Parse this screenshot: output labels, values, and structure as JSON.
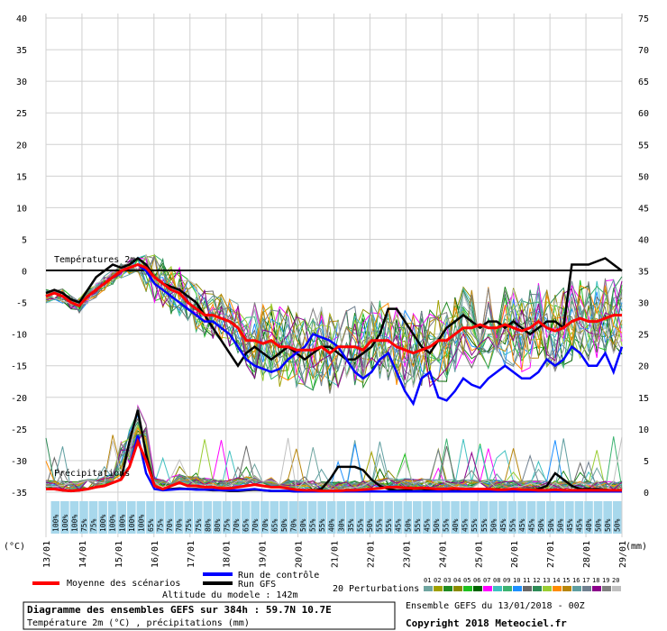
{
  "chart_data": {
    "type": "line",
    "left_axis_label": "(°C)",
    "right_axis_label": "(mm)",
    "temp_ylim": [
      -35,
      40
    ],
    "precip_ylim": [
      0,
      75
    ],
    "left_ticks": [
      40,
      35,
      30,
      25,
      20,
      15,
      10,
      5,
      0,
      -5,
      -10,
      -15,
      -20,
      -25,
      -30,
      -35
    ],
    "right_ticks": [
      75,
      70,
      65,
      60,
      55,
      50,
      45,
      40,
      35,
      30,
      25,
      20,
      15,
      10,
      5,
      0
    ],
    "x_labels": [
      "13/01",
      "14/01",
      "15/01",
      "16/01",
      "17/01",
      "18/01",
      "19/01",
      "20/01",
      "21/01",
      "22/01",
      "23/01",
      "24/01",
      "25/01",
      "26/01",
      "27/01",
      "28/01",
      "29/01"
    ],
    "temp_section_label": "Températures 2m",
    "precip_section_label": "Précipitations",
    "probabilities": [
      "100%",
      "100%",
      "100%",
      "75%",
      "75%",
      "100%",
      "100%",
      "100%",
      "100%",
      "100%",
      "65%",
      "75%",
      "70%",
      "70%",
      "75%",
      "75%",
      "80%",
      "80%",
      "75%",
      "70%",
      "65%",
      "70%",
      "70%",
      "65%",
      "50%",
      "70%",
      "50%",
      "55%",
      "55%",
      "40%",
      "30%",
      "35%",
      "55%",
      "50%",
      "55%",
      "55%",
      "45%",
      "50%",
      "55%",
      "45%",
      "50%",
      "55%",
      "40%",
      "45%",
      "55%",
      "55%",
      "50%",
      "45%",
      "55%",
      "45%",
      "45%",
      "50%",
      "50%",
      "50%",
      "45%",
      "45%",
      "40%",
      "50%",
      "50%",
      "50%"
    ],
    "series": {
      "mean": {
        "name": "Moyenne des scénarios",
        "color": "#ff0000",
        "temp": [
          -4,
          -3.5,
          -4,
          -5,
          -5.5,
          -4,
          -3,
          -2,
          -1,
          0,
          0.5,
          1,
          0.5,
          -1,
          -2,
          -3,
          -3.5,
          -5,
          -6,
          -7,
          -7,
          -7.5,
          -8,
          -9,
          -11,
          -11,
          -11.5,
          -11,
          -12,
          -12,
          -12.5,
          -12.5,
          -12.5,
          -12,
          -13,
          -12,
          -12,
          -12,
          -12.5,
          -11,
          -11,
          -11,
          -12,
          -12.5,
          -13,
          -12.5,
          -12,
          -11,
          -11,
          -10,
          -9,
          -9,
          -8.5,
          -9,
          -9,
          -8.5,
          -9,
          -9.5,
          -9,
          -8,
          -9,
          -9.5,
          -9,
          -8,
          -7.5,
          -8,
          -8,
          -7.5,
          -7,
          -7
        ],
        "precip": [
          0.5,
          0.5,
          0.3,
          0.2,
          0.3,
          0.5,
          0.8,
          1,
          1.5,
          2,
          4,
          8,
          5,
          1,
          0.5,
          1,
          1.5,
          1,
          1,
          0.8,
          0.8,
          0.6,
          0.6,
          0.8,
          1,
          1.2,
          1,
          0.8,
          0.8,
          0.6,
          0.4,
          0.3,
          0.3,
          0.2,
          0.2,
          0.2,
          0.3,
          0.3,
          0.4,
          0.5,
          0.6,
          0.8,
          0.8,
          0.7,
          0.6,
          0.7,
          0.6,
          0.5,
          0.5,
          0.6,
          0.5,
          0.5,
          0.5,
          0.5,
          0.4,
          0.4,
          0.5,
          0.4,
          0.4,
          0.3,
          0.3,
          0.4,
          0.3,
          0.3,
          0.3,
          0.3,
          0.3,
          0.3,
          0.3,
          0.3
        ]
      },
      "control": {
        "name": "Run de contrôle",
        "color": "#0000ff",
        "temp": [
          -4,
          -3.5,
          -4,
          -5,
          -5.5,
          -4,
          -3,
          -2,
          -1,
          0,
          0.5,
          1,
          0,
          -2,
          -3,
          -4,
          -5,
          -6,
          -7,
          -8,
          -8,
          -9,
          -10,
          -12,
          -14,
          -15,
          -15.5,
          -16,
          -15.5,
          -14,
          -13,
          -12,
          -10,
          -10.5,
          -11,
          -12,
          -14,
          -16,
          -17,
          -16,
          -14,
          -13,
          -16,
          -19,
          -21,
          -17,
          -16,
          -20,
          -20.5,
          -19,
          -17,
          -18,
          -18.5,
          -17,
          -16,
          -15,
          -16,
          -17,
          -17,
          -16,
          -14,
          -15,
          -14,
          -12,
          -13,
          -15,
          -15,
          -13,
          -16,
          -12
        ],
        "precip": [
          0.5,
          0.5,
          0.3,
          0.2,
          0.3,
          0.5,
          0.8,
          1,
          1.5,
          2,
          4,
          9,
          3,
          0.5,
          0.3,
          0.4,
          0.5,
          0.5,
          0.4,
          0.4,
          0.4,
          0.3,
          0.3,
          0.3,
          0.4,
          0.5,
          0.3,
          0.2,
          0.2,
          0.2,
          0.1,
          0.1,
          0.1,
          0.1,
          0.1,
          0.1,
          0.1,
          0.1,
          0.1,
          0.1,
          0.1,
          0.1,
          0.1,
          0.1,
          0.1,
          0.1,
          0.1,
          0.1,
          0.1,
          0.1,
          0.1,
          0.1,
          0.1,
          0.1,
          0.1,
          0.1,
          0.1,
          0.1,
          0.1,
          0.1,
          0.1,
          0.1,
          0.1,
          0.1,
          0.1,
          0.1,
          0.1,
          0.1,
          0.1,
          0.1
        ]
      },
      "gfs": {
        "name": "Run GFS",
        "color": "#000000",
        "temp": [
          -3.5,
          -3,
          -3.5,
          -4.5,
          -5,
          -3,
          -1,
          0,
          1,
          0.5,
          1,
          2,
          1,
          -1,
          -2,
          -2.5,
          -3,
          -4,
          -5,
          -7,
          -9,
          -11,
          -13,
          -15,
          -13,
          -12,
          -13,
          -14,
          -13,
          -12,
          -13,
          -14,
          -13,
          -12,
          -12,
          -13,
          -14,
          -14,
          -13,
          -12,
          -10,
          -6,
          -6,
          -8,
          -10,
          -12,
          -13,
          -11,
          -9,
          -8,
          -7,
          -8,
          -9,
          -8,
          -8,
          -9,
          -8,
          -9,
          -10,
          -9,
          -8,
          -8,
          -9,
          1,
          1,
          1,
          1.5,
          2,
          1,
          0
        ],
        "precip": [
          0.5,
          0.5,
          0.3,
          0.2,
          0.3,
          0.5,
          0.8,
          1,
          1.5,
          2,
          8,
          13,
          6,
          1,
          0.4,
          0.5,
          0.6,
          0.5,
          0.5,
          0.4,
          0.3,
          0.3,
          0.2,
          0.2,
          0.3,
          0.4,
          0.3,
          0.2,
          0.2,
          0.2,
          0.1,
          0.1,
          0.2,
          0.5,
          2,
          4,
          4,
          4,
          3.5,
          2,
          1,
          0.5,
          0.3,
          0.3,
          0.5,
          0.5,
          0.4,
          0.3,
          0.3,
          0.2,
          0.2,
          0.2,
          0.3,
          0.4,
          0.5,
          0.3,
          0.2,
          0.2,
          0.3,
          0.5,
          1,
          3,
          2,
          1,
          0.5,
          0.5,
          0.5,
          0.4,
          0.3,
          0.2
        ]
      }
    },
    "perturbations": {
      "title": "20 Perturbations",
      "ids": [
        "01",
        "02",
        "03",
        "04",
        "05",
        "06",
        "07",
        "08",
        "09",
        "10",
        "11",
        "12",
        "13",
        "14",
        "15",
        "16",
        "17",
        "18",
        "19",
        "20"
      ],
      "colors": [
        "#6fa5a0",
        "#a0a000",
        "#228b22",
        "#8b8b00",
        "#20c020",
        "#006400",
        "#ff00ff",
        "#40c0c0",
        "#3cb371",
        "#1e90ff",
        "#696969",
        "#2e8b57",
        "#9acd32",
        "#ff8c00",
        "#b8860b",
        "#5f9ea0",
        "#708090",
        "#8b008b",
        "#808080",
        "#c0c0c0"
      ]
    },
    "legend": {
      "mean": "Moyenne des scénarios",
      "control": "Run de contrôle",
      "gfs": "Run GFS",
      "altitude": "Altitude du modele : 142m"
    },
    "footer": {
      "title": "Diagramme des ensembles GEFS sur 384h : 59.7N 10.7E",
      "subtitle": "Température 2m (°C) , précipitations (mm)",
      "run_info": "Ensemble GEFS du 13/01/2018 - 00Z",
      "copyright": "Copyright 2018 Meteociel.fr"
    }
  }
}
